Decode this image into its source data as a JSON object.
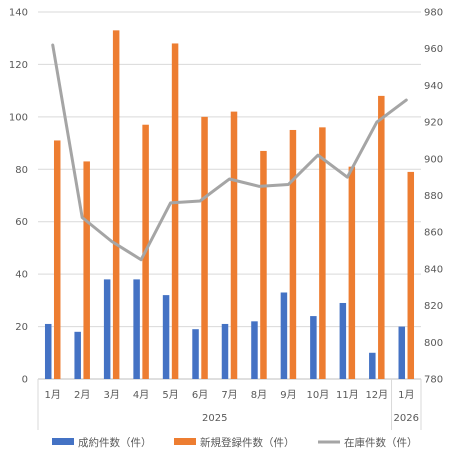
{
  "chart_data": {
    "type": "bar+line",
    "categories": [
      "1月",
      "2月",
      "3月",
      "4月",
      "5月",
      "6月",
      "7月",
      "8月",
      "9月",
      "10月",
      "11月",
      "12月",
      "1月"
    ],
    "year_groups": [
      {
        "label": "2025",
        "from": 0,
        "to": 11
      },
      {
        "label": "2026",
        "from": 12,
        "to": 12
      }
    ],
    "series": [
      {
        "name": "成約件数（件）",
        "type": "bar",
        "axis": "left",
        "color": "#4472C4",
        "values": [
          21,
          18,
          38,
          38,
          32,
          19,
          21,
          22,
          33,
          24,
          29,
          10,
          20
        ]
      },
      {
        "name": "新規登録件数（件）",
        "type": "bar",
        "axis": "left",
        "color": "#ED7D31",
        "values": [
          91,
          83,
          133,
          97,
          128,
          100,
          102,
          87,
          95,
          96,
          81,
          108,
          79
        ]
      },
      {
        "name": "在庫件数（件）",
        "type": "line",
        "axis": "right",
        "color": "#A5A5A5",
        "values": [
          962,
          868,
          855,
          845,
          876,
          877,
          889,
          885,
          886,
          902,
          890,
          920,
          932
        ]
      }
    ],
    "y_left": {
      "min": 0,
      "max": 140,
      "step": 20,
      "ticks": [
        "0",
        "20",
        "40",
        "60",
        "80",
        "100",
        "120",
        "140"
      ]
    },
    "y_right": {
      "min": 780,
      "max": 980,
      "step": 20,
      "ticks": [
        "780",
        "800",
        "820",
        "840",
        "860",
        "880",
        "900",
        "920",
        "940",
        "960",
        "980"
      ]
    },
    "grid": true,
    "legend_position": "bottom"
  }
}
